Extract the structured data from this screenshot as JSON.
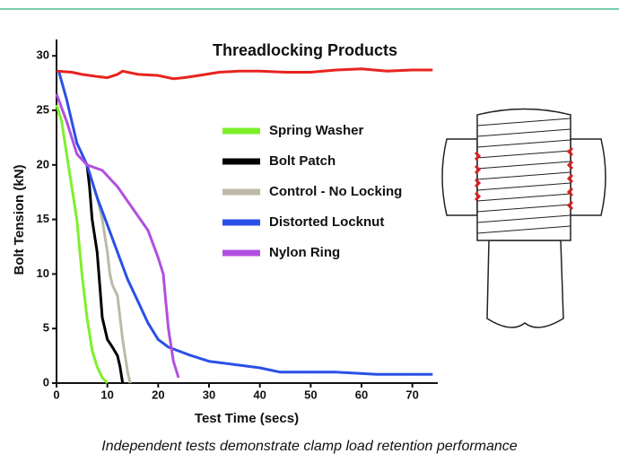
{
  "chart_data": {
    "type": "line",
    "title": "Threadlocking Products",
    "xlabel": "Test Time (secs)",
    "ylabel": "Bolt Tension (kN)",
    "xlim": [
      0,
      75
    ],
    "ylim": [
      0,
      31.5
    ],
    "xticks": [
      0,
      10,
      20,
      30,
      40,
      50,
      60,
      70
    ],
    "yticks": [
      0,
      5,
      10,
      15,
      20,
      25,
      30
    ],
    "series": [
      {
        "color": "#e8231f",
        "x": [
          0,
          3,
          5,
          8,
          10,
          12,
          13,
          16,
          20,
          23,
          25,
          28,
          32,
          36,
          40,
          45,
          50,
          55,
          60,
          65,
          70,
          74
        ],
        "values": [
          28.6,
          28.5,
          28.3,
          28.1,
          28.0,
          28.3,
          28.6,
          28.3,
          28.2,
          27.9,
          28.0,
          28.2,
          28.5,
          28.6,
          28.6,
          28.5,
          28.5,
          28.7,
          28.8,
          28.6,
          28.7,
          28.7
        ]
      },
      {
        "name": "Spring Washer",
        "color": "#7ef02a",
        "x": [
          0,
          1,
          2,
          3,
          4,
          5,
          6,
          7,
          8,
          9,
          10
        ],
        "values": [
          25.5,
          24,
          21,
          18,
          15,
          10,
          6,
          3,
          1.5,
          0.5,
          0
        ]
      },
      {
        "name": "Bolt Patch",
        "color": "#000000",
        "x": [
          6,
          6.5,
          7,
          8,
          8.5,
          9,
          10,
          11,
          12,
          12.5,
          13
        ],
        "values": [
          20,
          18,
          15,
          12,
          9,
          6,
          4,
          3.3,
          2.5,
          1.5,
          0
        ]
      },
      {
        "name": "Control - No Locking",
        "color": "#bdb9a8",
        "x": [
          7,
          8,
          9,
          10,
          10.5,
          11,
          12,
          12.5,
          13,
          13.5,
          14,
          14.5
        ],
        "values": [
          18.5,
          17,
          15,
          12,
          10,
          9,
          8,
          6,
          4,
          2.5,
          1,
          0
        ]
      },
      {
        "name": "Distorted Locknut",
        "color": "#2a4fe8",
        "x": [
          0.5,
          2,
          4,
          6,
          8,
          10,
          12,
          14,
          16,
          18,
          20,
          22,
          26,
          30,
          40,
          44,
          55,
          63,
          65,
          74
        ],
        "values": [
          28.5,
          26,
          22,
          20,
          17,
          14.5,
          12,
          9.5,
          7.5,
          5.5,
          4,
          3.3,
          2.6,
          2,
          1.4,
          1,
          1,
          0.8,
          0.8,
          0.8
        ]
      },
      {
        "name": "Nylon Ring",
        "color": "#b24fe0",
        "x": [
          0,
          2,
          4,
          6,
          9,
          12,
          15,
          18,
          20,
          21,
          21.5,
          22,
          23,
          24
        ],
        "values": [
          26.5,
          24,
          21,
          20,
          19.5,
          18,
          16,
          14,
          11.5,
          10,
          7.5,
          5,
          2,
          0.5
        ]
      }
    ]
  },
  "caption": "Independent tests demonstrate clamp load retention performance"
}
